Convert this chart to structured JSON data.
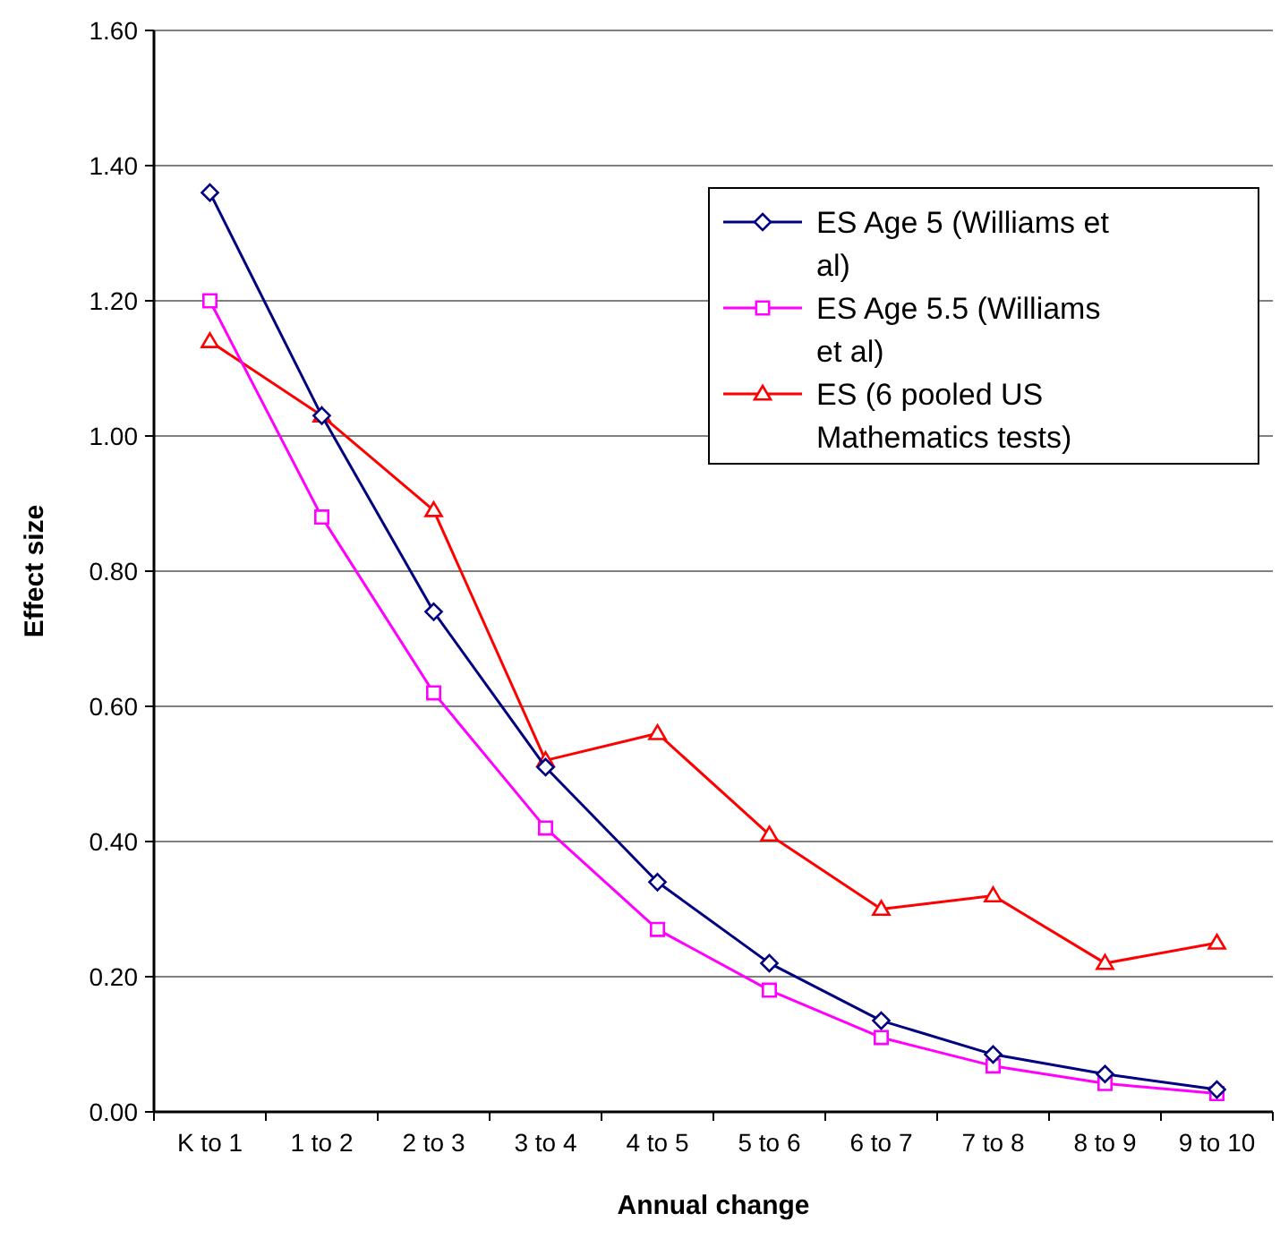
{
  "chart_data": {
    "type": "line",
    "xlabel": "Annual change",
    "ylabel": "Effect size",
    "categories": [
      "K to 1",
      "1 to 2",
      "2 to 3",
      "3 to 4",
      "4 to 5",
      "5 to 6",
      "6 to 7",
      "7 to 8",
      "8 to 9",
      "9 to 10"
    ],
    "series": [
      {
        "name": "ES Age 5 (Williams et al)",
        "color": "#000080",
        "marker": "diamond",
        "values": [
          1.36,
          1.03,
          0.74,
          0.51,
          0.34,
          0.22,
          0.135,
          0.085,
          0.056,
          0.033
        ]
      },
      {
        "name": "ES Age 5.5 (Williams et al)",
        "color": "#ff00ff",
        "marker": "square",
        "values": [
          1.2,
          0.88,
          0.62,
          0.42,
          0.27,
          0.18,
          0.11,
          0.068,
          0.042,
          0.027
        ]
      },
      {
        "name": "ES (6 pooled US Mathematics tests)",
        "color": "#ff0000",
        "marker": "triangle",
        "values": [
          1.14,
          1.03,
          0.89,
          0.52,
          0.56,
          0.41,
          0.3,
          0.32,
          0.22,
          0.25
        ]
      }
    ],
    "ylim": [
      0,
      1.6
    ],
    "yticks": [
      {
        "value": 0,
        "label": "0.00"
      },
      {
        "value": 0.2,
        "label": "0.20"
      },
      {
        "value": 0.4,
        "label": "0.40"
      },
      {
        "value": 0.6,
        "label": "0.60"
      },
      {
        "value": 0.8,
        "label": "0.80"
      },
      {
        "value": 1,
        "label": "1.00"
      },
      {
        "value": 1.2,
        "label": "1.20"
      },
      {
        "value": 1.4,
        "label": "1.40"
      },
      {
        "value": 1.6,
        "label": "1.60"
      }
    ],
    "grid": "y",
    "legend": "top right",
    "line_style": "solid"
  }
}
